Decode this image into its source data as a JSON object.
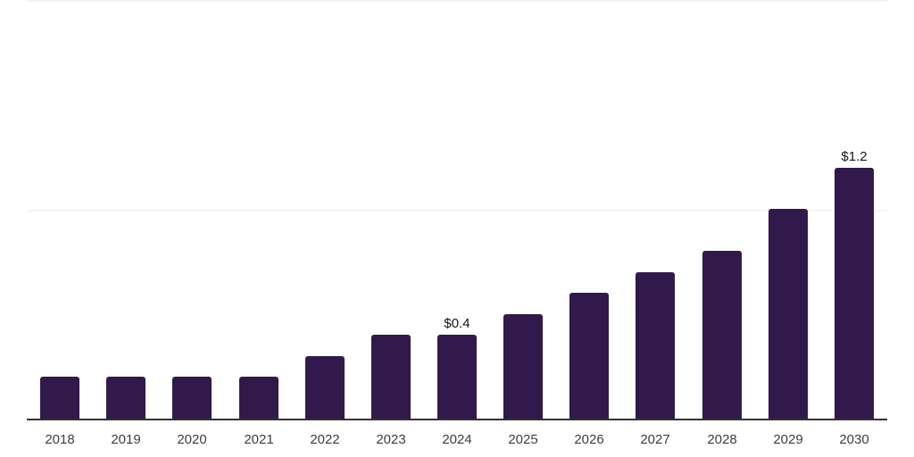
{
  "page": {
    "background": "#ffffff"
  },
  "chart_data": {
    "type": "bar",
    "title": "",
    "xlabel": "",
    "ylabel": "",
    "categories": [
      "2018",
      "2019",
      "2020",
      "2021",
      "2022",
      "2023",
      "2024",
      "2025",
      "2026",
      "2027",
      "2028",
      "2029",
      "2030"
    ],
    "values": [
      0.2,
      0.2,
      0.2,
      0.2,
      0.3,
      0.4,
      0.4,
      0.5,
      0.6,
      0.7,
      0.8,
      1.0,
      1.2
    ],
    "data_labels": {
      "2024": "$0.4",
      "2030": "$1.2"
    },
    "ylim": [
      0,
      2.0
    ],
    "y_gridlines": [
      1.0,
      2.0
    ],
    "grid": "horizontal-only",
    "legend": "none",
    "colors": {
      "bar": "#311a4b",
      "axis_line": "#333333",
      "gridline": "#f3f3f3",
      "tick_label": "#3d3d3d",
      "data_label": "#141414"
    }
  }
}
